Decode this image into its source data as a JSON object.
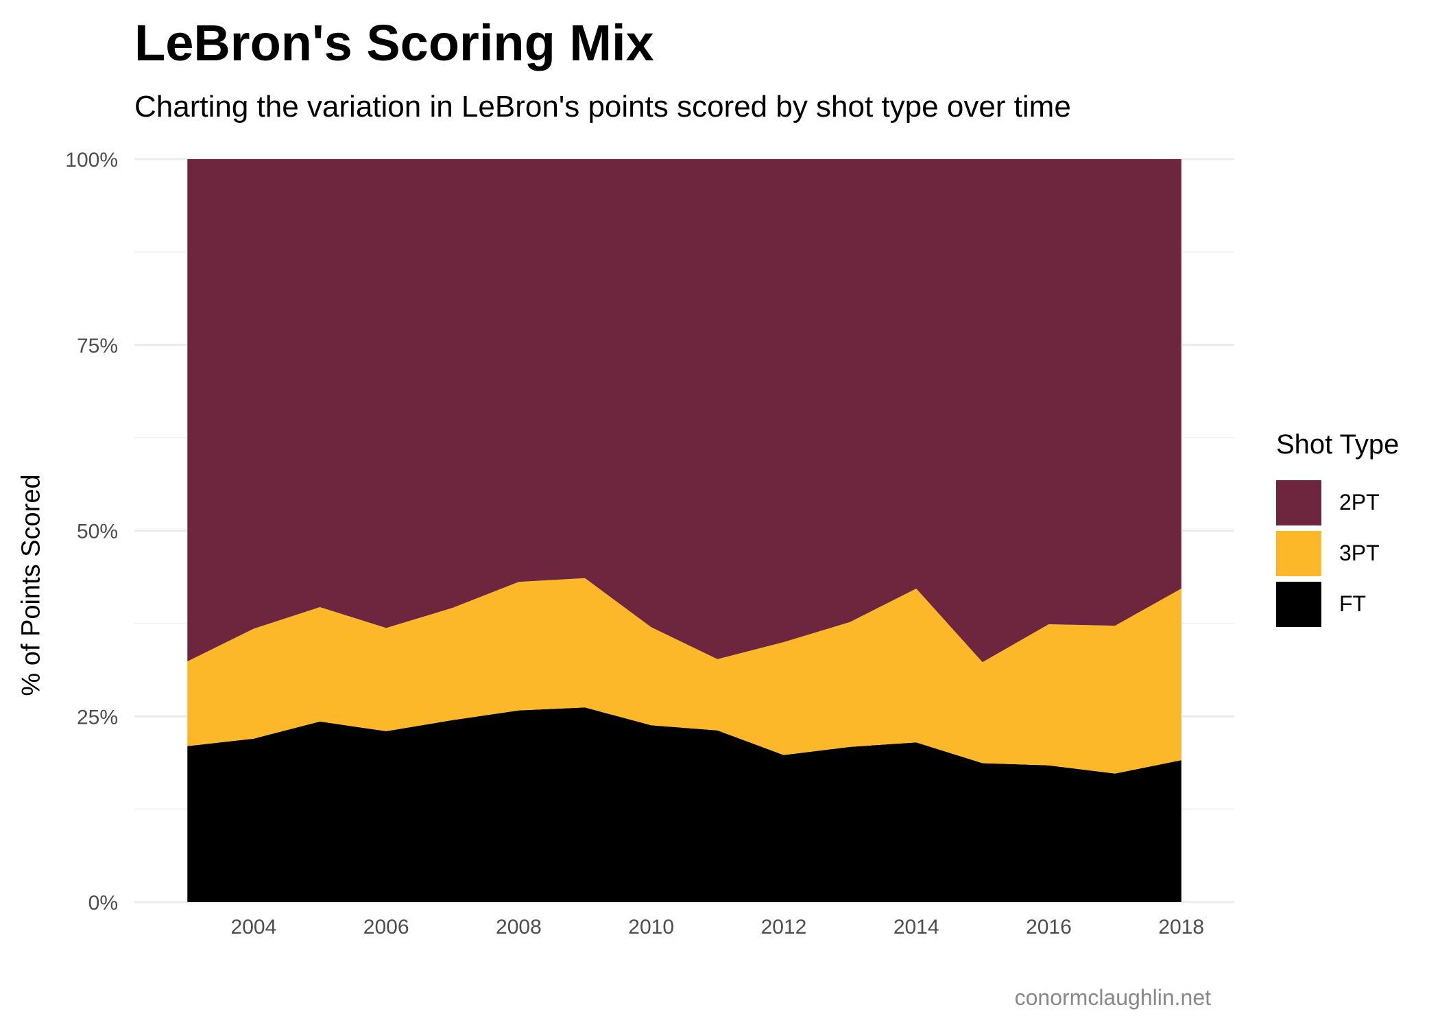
{
  "chart_data": {
    "type": "area",
    "stacked": true,
    "normalized": true,
    "title": "LeBron's Scoring Mix",
    "subtitle": "Charting the variation in LeBron's points scored by shot type over time",
    "xlabel": "",
    "ylabel": "% of Points Scored",
    "caption": "conormclaughlin.net",
    "x": [
      2003,
      2004,
      2005,
      2006,
      2007,
      2008,
      2009,
      2010,
      2011,
      2012,
      2013,
      2014,
      2015,
      2016,
      2017,
      2018
    ],
    "xlim": [
      2002.2,
      2018.8
    ],
    "ylim": [
      0,
      100
    ],
    "x_ticks": [
      2004,
      2006,
      2008,
      2010,
      2012,
      2014,
      2016,
      2018
    ],
    "x_tick_labels": [
      "2004",
      "2006",
      "2008",
      "2010",
      "2012",
      "2014",
      "2016",
      "2018"
    ],
    "y_ticks": [
      0,
      25,
      50,
      75,
      100
    ],
    "y_tick_labels": [
      "0%",
      "25%",
      "50%",
      "75%",
      "100%"
    ],
    "grid": true,
    "legend": {
      "title": "Shot Type",
      "position": "right"
    },
    "series": [
      {
        "name": "2PT",
        "color": "#6d263d",
        "values": [
          67.6,
          63.2,
          60.3,
          63.1,
          60.4,
          56.9,
          56.4,
          63.0,
          67.3,
          65.0,
          62.3,
          57.8,
          67.7,
          62.6,
          62.8,
          57.8
        ]
      },
      {
        "name": "3PT",
        "color": "#fdb829",
        "values": [
          11.4,
          14.8,
          15.4,
          13.9,
          15.1,
          17.3,
          17.4,
          13.2,
          9.6,
          15.2,
          16.8,
          20.7,
          13.6,
          19.0,
          19.9,
          23.1
        ]
      },
      {
        "name": "FT",
        "color": "#000000",
        "values": [
          21.0,
          22.0,
          24.3,
          23.0,
          24.5,
          25.8,
          26.2,
          23.8,
          23.1,
          19.8,
          20.9,
          21.5,
          18.7,
          18.4,
          17.3,
          19.1
        ]
      }
    ]
  }
}
